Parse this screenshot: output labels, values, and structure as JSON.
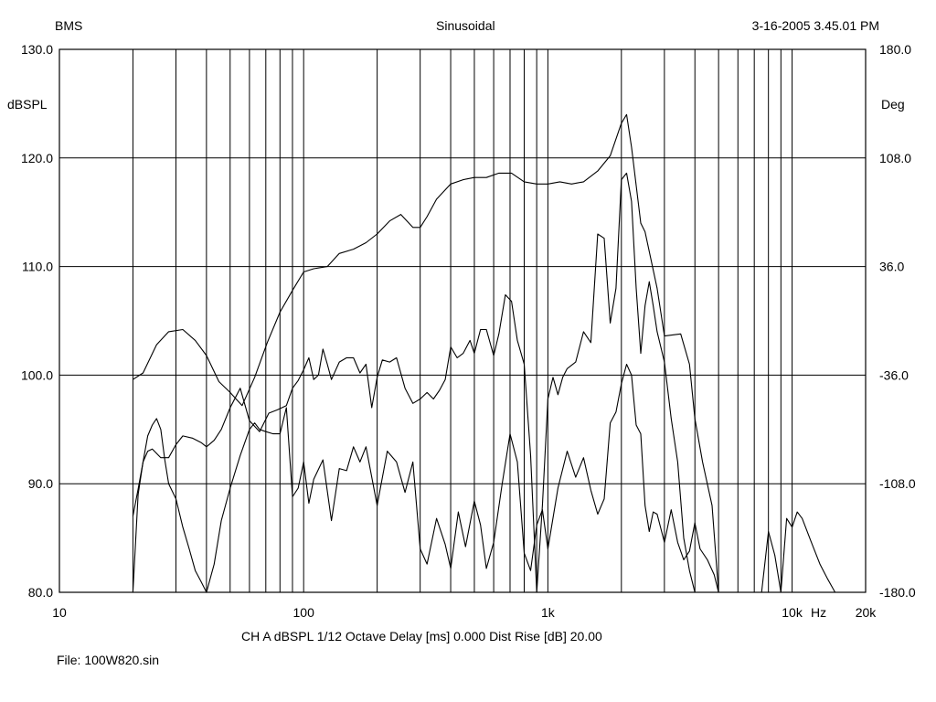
{
  "header": {
    "left": "BMS",
    "center": "Sinusoidal",
    "right": "3-16-2005 3.45.01 PM"
  },
  "footer": {
    "info": "CH A   dBSPL   1/12 Octave   Delay [ms] 0.000   Dist Rise [dB] 20.00",
    "file": "File: 100W820.sin"
  },
  "chart_data": {
    "type": "line",
    "xscale": "log",
    "xlim": [
      10,
      20000
    ],
    "ylim": [
      80,
      130
    ],
    "y2lim": [
      -180,
      180
    ],
    "grid": true,
    "ylabel": "dBSPL",
    "y2label": "Deg",
    "xunit": "Hz",
    "x_ticks": [
      {
        "value": 10,
        "label": "10"
      },
      {
        "value": 100,
        "label": "100"
      },
      {
        "value": 1000,
        "label": "1k"
      },
      {
        "value": 10000,
        "label": "10k"
      },
      {
        "value": 20000,
        "label": "20k"
      }
    ],
    "y_ticks": [
      "130.0",
      "120.0",
      "110.0",
      "100.0",
      "90.0",
      "80.0"
    ],
    "y2_ticks": [
      "180.0",
      "108.0",
      "36.0",
      "-36.0",
      "-108.0",
      "-180.0"
    ],
    "series": [
      {
        "x": [
          20,
          22,
          25,
          28,
          32,
          36,
          40,
          45,
          50,
          56,
          63,
          71,
          80,
          90,
          100,
          110,
          125,
          140,
          160,
          180,
          200,
          225,
          250,
          280,
          300,
          320,
          350,
          400,
          450,
          500,
          560,
          630,
          710,
          800,
          900,
          1000,
          1120,
          1250,
          1400,
          1600,
          1800,
          2000,
          2100,
          2200,
          2400,
          2500,
          2800,
          3000,
          3500,
          3800,
          4000,
          4300,
          4700,
          5000
        ],
        "y": [
          99.6,
          100.2,
          102.8,
          104.0,
          104.2,
          103.2,
          101.8,
          99.4,
          98.4,
          97.2,
          99.8,
          103.0,
          105.8,
          107.8,
          109.5,
          109.8,
          110.0,
          111.2,
          111.6,
          112.2,
          113.0,
          114.2,
          114.8,
          113.6,
          113.6,
          114.6,
          116.2,
          117.6,
          118.0,
          118.2,
          118.2,
          118.6,
          118.6,
          117.8,
          117.6,
          117.6,
          117.8,
          117.6,
          117.8,
          118.8,
          120.2,
          123.2,
          124.0,
          121.0,
          114.0,
          113.2,
          108.0,
          103.6,
          103.8,
          101.0,
          96.0,
          92.0,
          88.0,
          80.0
        ]
      },
      {
        "x": [
          20,
          21,
          22,
          23,
          24,
          26,
          28,
          30,
          32,
          35,
          38,
          40,
          43,
          46,
          50,
          55,
          60,
          66,
          72,
          78,
          85,
          90,
          95,
          100,
          105,
          110,
          115,
          120,
          125,
          130,
          140,
          150,
          160,
          170,
          180,
          190,
          200,
          210,
          225,
          240,
          260,
          280,
          300,
          320,
          340,
          360,
          380,
          400,
          425,
          450,
          480,
          500,
          530,
          560,
          600,
          630,
          670,
          710,
          750,
          800,
          850,
          900,
          950,
          1000,
          1050,
          1100,
          1150,
          1200,
          1300,
          1400,
          1500,
          1600,
          1700,
          1800,
          1900,
          2000,
          2100,
          2200,
          2300,
          2400,
          2500,
          2600,
          2700,
          2800,
          3000,
          3200,
          3400,
          3600,
          3800,
          4000
        ],
        "y": [
          87.0,
          89.5,
          92.0,
          93.0,
          93.2,
          92.4,
          92.4,
          93.6,
          94.4,
          94.2,
          93.8,
          93.4,
          94.0,
          95.0,
          97.0,
          98.8,
          95.8,
          94.8,
          96.5,
          96.8,
          97.2,
          98.8,
          99.5,
          100.5,
          101.6,
          99.6,
          100.0,
          102.4,
          101.0,
          99.6,
          101.2,
          101.6,
          101.6,
          100.2,
          101.0,
          97.0,
          99.8,
          101.4,
          101.2,
          101.6,
          98.8,
          97.4,
          97.8,
          98.4,
          97.8,
          98.6,
          99.6,
          102.6,
          101.6,
          102.0,
          103.2,
          102.0,
          104.2,
          104.2,
          101.8,
          103.8,
          107.4,
          106.8,
          103.2,
          101.0,
          92.6,
          80.0,
          88.0,
          97.8,
          99.8,
          98.2,
          99.8,
          100.6,
          101.2,
          104.0,
          103.0,
          113.0,
          112.6,
          104.8,
          108.0,
          118.0,
          118.6,
          116.0,
          108.0,
          102.0,
          106.4,
          108.6,
          106.4,
          104.0,
          101.2,
          96.0,
          92.0,
          85.0,
          82.0,
          80.0
        ]
      },
      {
        "x": [
          20,
          21,
          22,
          23,
          24,
          25,
          26,
          27,
          28,
          30,
          32,
          34,
          36,
          38,
          40,
          43,
          46,
          50,
          55,
          60,
          63,
          66,
          70,
          75,
          80,
          85,
          90,
          95,
          100,
          105,
          110,
          120,
          130,
          140,
          150,
          160,
          170,
          180,
          200,
          220,
          240,
          260,
          280,
          300,
          320,
          350,
          380,
          400,
          430,
          460,
          500,
          530,
          560,
          600,
          650,
          700,
          750,
          800,
          850,
          900,
          950,
          1000,
          1100,
          1200,
          1300,
          1400,
          1500,
          1600,
          1700,
          1800,
          1900,
          2000,
          2100,
          2200,
          2300,
          2400,
          2500,
          2600,
          2700,
          2800,
          3000,
          3200,
          3400,
          3600,
          3800,
          4000,
          4200,
          4500,
          4800,
          5000,
          5500,
          6000,
          6500,
          7000,
          7500,
          8000,
          8500,
          9000,
          9500,
          10000,
          10500,
          11000,
          12000,
          13000,
          14000,
          15000
        ],
        "y": [
          80.0,
          89.0,
          92.0,
          94.4,
          95.4,
          96.0,
          95.0,
          92.2,
          90.0,
          88.6,
          86.0,
          84.0,
          82.0,
          81.0,
          80.0,
          82.6,
          86.6,
          89.6,
          92.6,
          95.0,
          95.6,
          95.0,
          94.8,
          94.6,
          94.6,
          97.0,
          88.8,
          89.6,
          92.0,
          88.2,
          90.4,
          92.2,
          86.6,
          91.4,
          91.2,
          93.4,
          92.0,
          93.4,
          88.0,
          93.0,
          92.0,
          89.2,
          92.0,
          84.0,
          82.6,
          86.8,
          84.4,
          82.2,
          87.4,
          84.2,
          88.4,
          86.2,
          82.2,
          84.6,
          90.0,
          94.6,
          92.0,
          83.6,
          82.0,
          86.2,
          87.6,
          84.0,
          89.6,
          93.0,
          90.6,
          92.4,
          89.4,
          87.2,
          88.6,
          95.6,
          96.6,
          99.2,
          101.0,
          100.0,
          95.4,
          94.6,
          88.0,
          85.6,
          87.4,
          87.2,
          84.6,
          87.6,
          84.6,
          83.0,
          83.8,
          86.4,
          84.0,
          83.0,
          81.6,
          80.0,
          80.0,
          80.0,
          80.0,
          80.0,
          80.0,
          85.6,
          83.4,
          80.0,
          86.8,
          86.0,
          87.4,
          86.8,
          84.6,
          82.6,
          81.2,
          80.0
        ]
      }
    ]
  }
}
